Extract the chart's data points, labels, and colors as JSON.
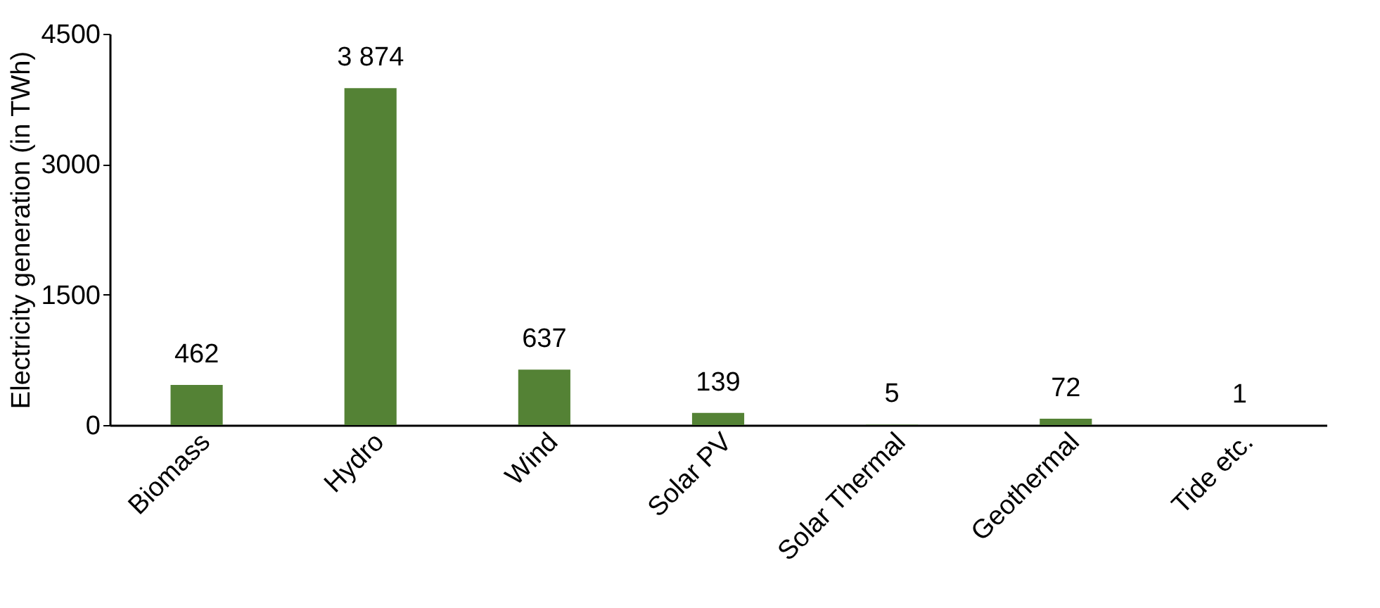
{
  "chart_data": {
    "type": "bar",
    "ylabel": "Electricity generation  (in TWh)",
    "categories": [
      "Biomass",
      "Hydro",
      "Wind",
      "Solar PV",
      "Solar Thermal",
      "Geothermal",
      "Tide etc."
    ],
    "values": [
      462,
      3874,
      637,
      139,
      5,
      72,
      1
    ],
    "value_labels": [
      "462",
      "3 874",
      "637",
      "139",
      "5",
      "72",
      "1"
    ],
    "color": "#548235",
    "ylim": [
      0,
      4500
    ],
    "yticks": [
      0,
      1500,
      3000,
      4500
    ],
    "grid": false
  }
}
